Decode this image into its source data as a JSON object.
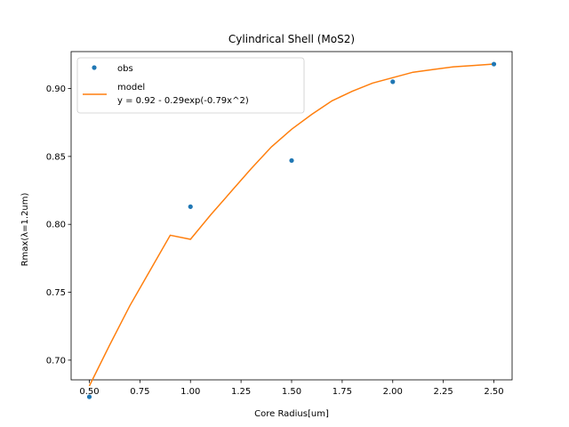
{
  "chart_data": {
    "type": "scatter",
    "title": "Cylindrical Shell (MoS2)",
    "xlabel": "Core Radius[um]",
    "ylabel": "Rmax(λ=1.2um)",
    "xlim": [
      0.41,
      2.59
    ],
    "ylim": [
      0.6855,
      0.9272
    ],
    "xticks": [
      0.5,
      0.75,
      1.0,
      1.25,
      1.5,
      1.75,
      2.0,
      2.25,
      2.5
    ],
    "xtick_labels": [
      "0.50",
      "0.75",
      "1.00",
      "1.25",
      "1.50",
      "1.75",
      "2.00",
      "2.25",
      "2.50"
    ],
    "yticks": [
      0.7,
      0.75,
      0.8,
      0.85,
      0.9
    ],
    "ytick_labels": [
      "0.70",
      "0.75",
      "0.80",
      "0.85",
      "0.90"
    ],
    "grid": false,
    "legend_position": "top-left",
    "series": [
      {
        "name": "obs",
        "kind": "points",
        "color": "#1f77b4",
        "x": [
          0.5,
          1.0,
          1.5,
          2.0,
          2.5
        ],
        "y": [
          0.673,
          0.813,
          0.847,
          0.905,
          0.918
        ]
      },
      {
        "name": "model",
        "kind": "line",
        "color": "#ff7f0e",
        "x": [
          0.5,
          0.6,
          0.7,
          0.8,
          0.9,
          1.0,
          1.1,
          1.2,
          1.3,
          1.4,
          1.5,
          1.6,
          1.7,
          1.8,
          1.9,
          2.0,
          2.1,
          2.2,
          2.3,
          2.4,
          2.5
        ],
        "y": [
          0.681,
          0.711,
          0.74,
          0.766,
          0.792,
          0.789,
          0.807,
          0.824,
          0.841,
          0.857,
          0.87,
          0.881,
          0.891,
          0.898,
          0.904,
          0.908,
          0.912,
          0.914,
          0.916,
          0.917,
          0.918
        ]
      }
    ],
    "legend": {
      "entries": [
        {
          "label": "obs"
        },
        {
          "label": "model",
          "label_line2": "y = 0.92 - 0.29exp(-0.79x^2)"
        }
      ]
    }
  }
}
